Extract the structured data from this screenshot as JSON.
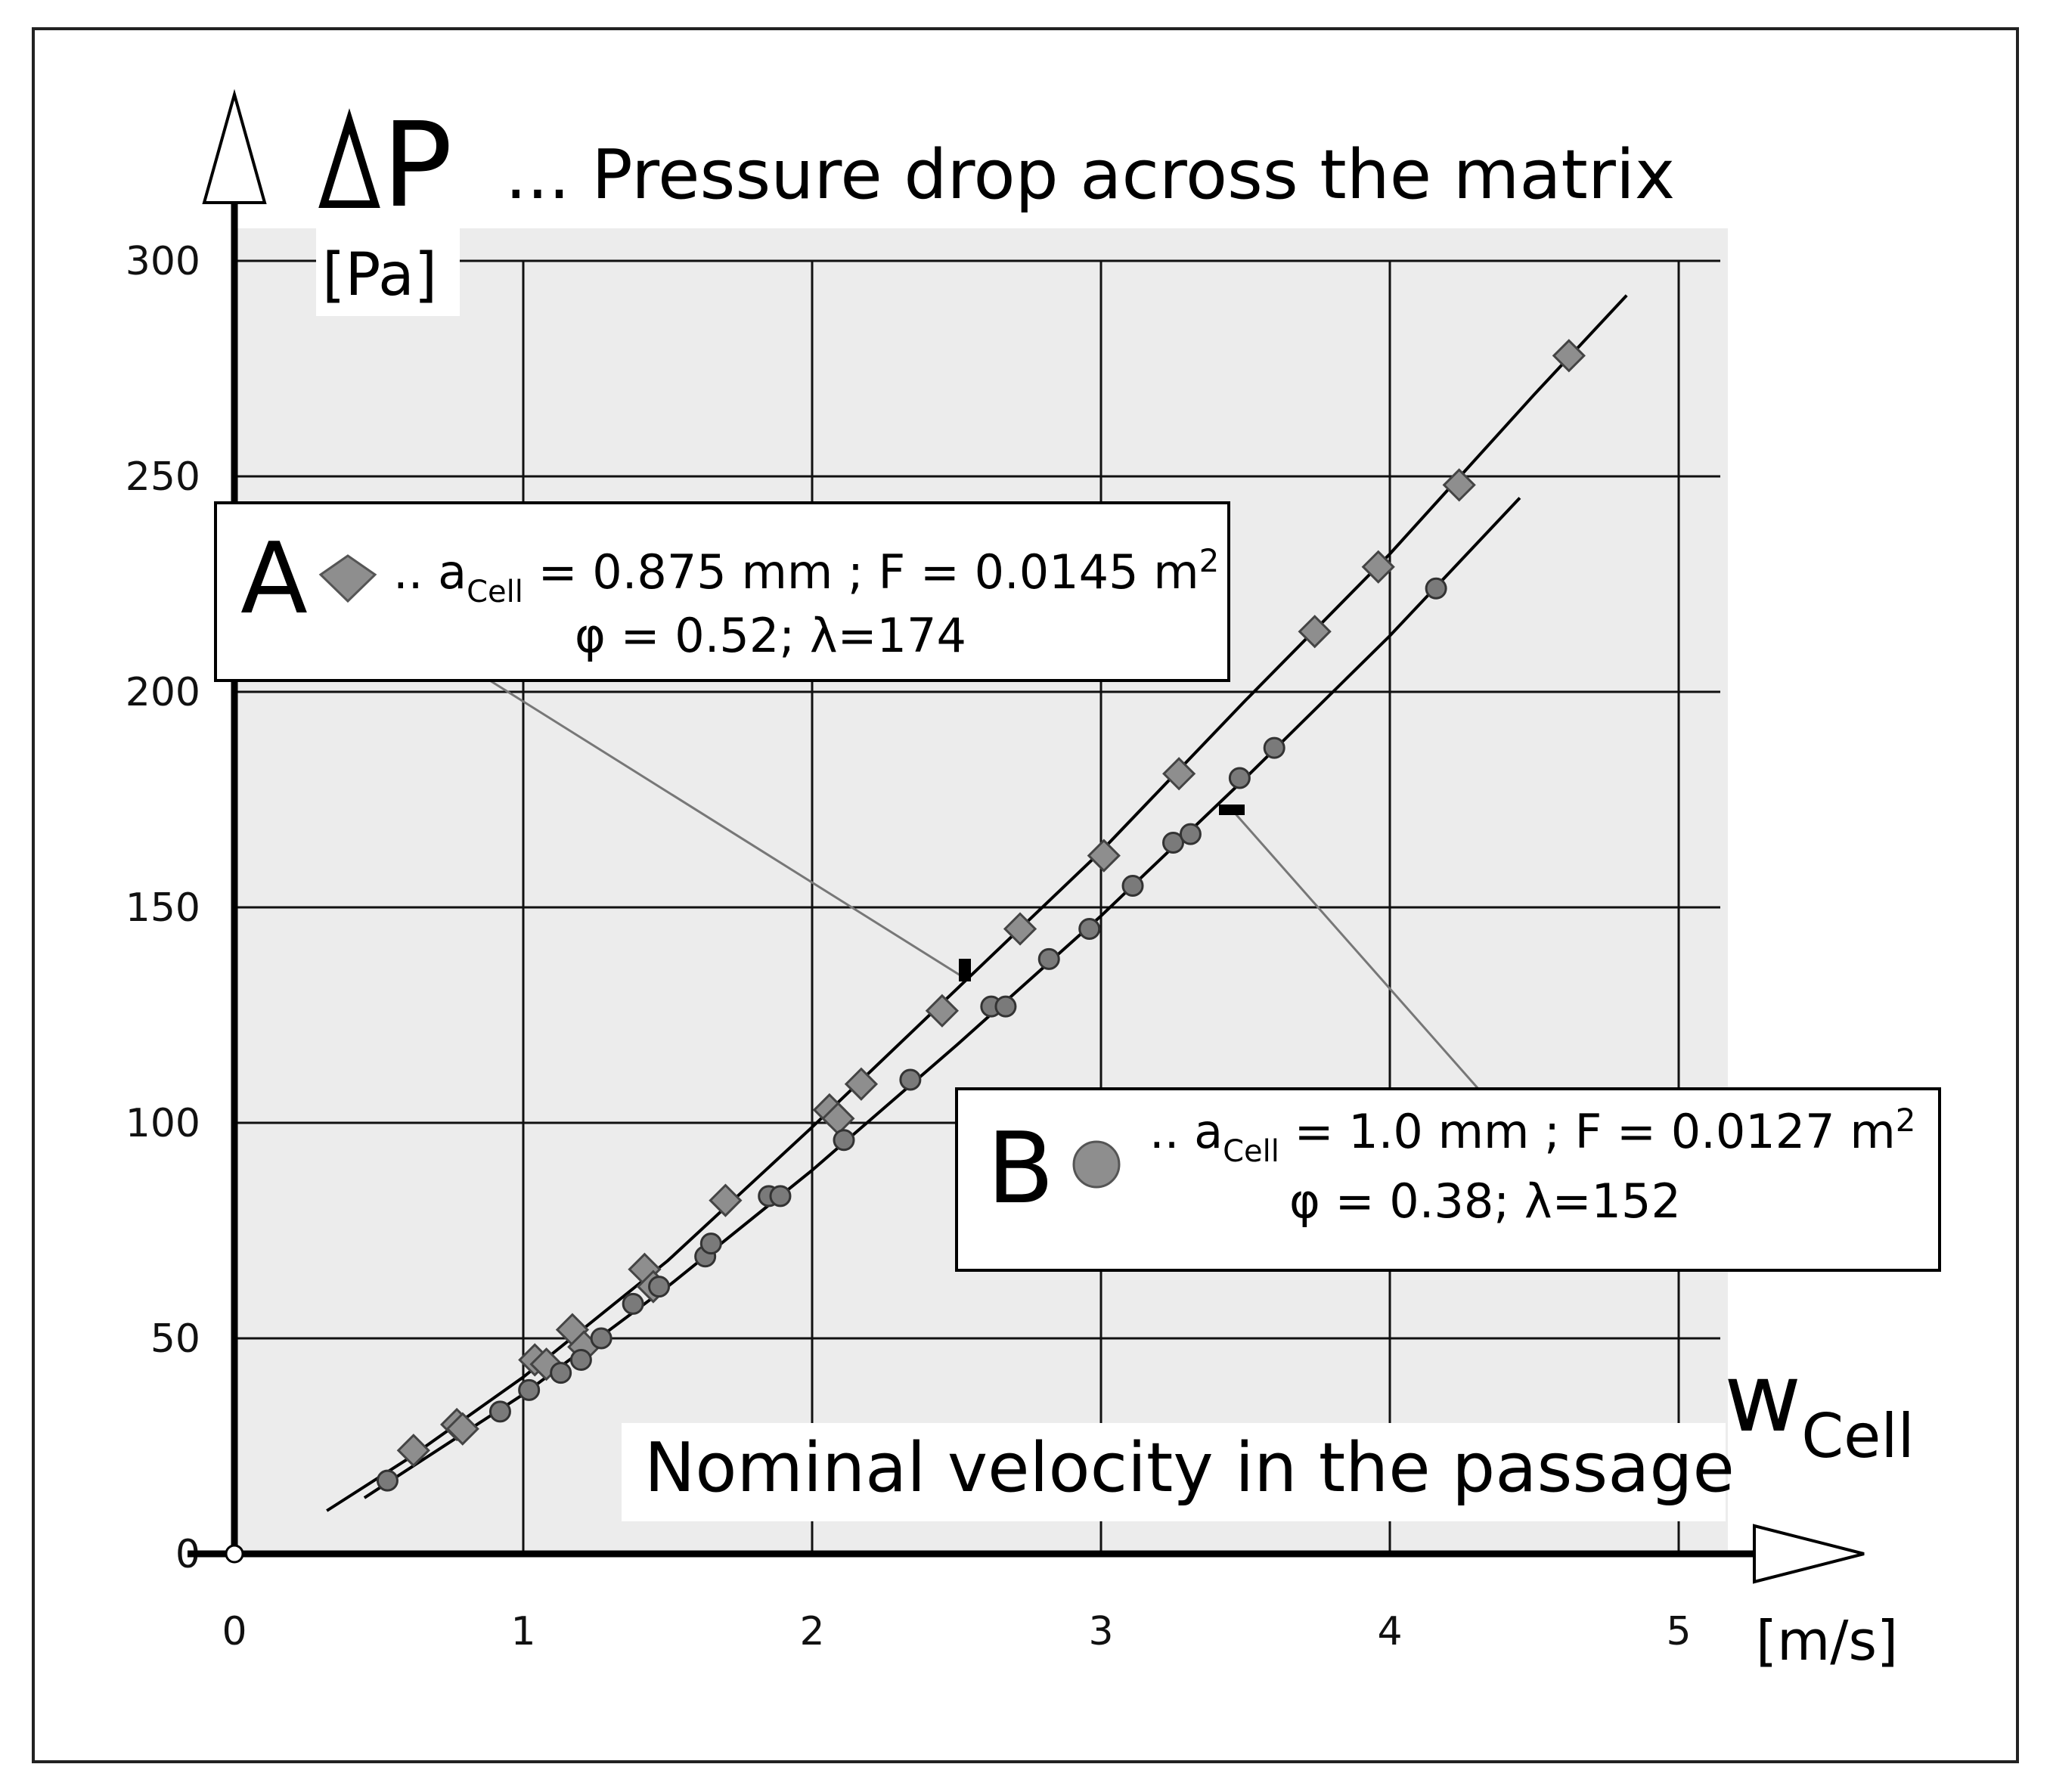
{
  "chart_data": {
    "type": "scatter",
    "title_symbol": "ΔP",
    "title": "... Pressure drop across the matrix",
    "ylabel_unit": "[Pa]",
    "xlabel": "Nominal velocity in the passage",
    "xlabel_symbol": "w",
    "xlabel_subscript": "Cell",
    "xlabel_unit": "[m/s]",
    "xlim": [
      0,
      5
    ],
    "ylim": [
      0,
      300
    ],
    "x_ticks": [
      0,
      1,
      2,
      3,
      4,
      5
    ],
    "y_ticks": [
      0,
      50,
      100,
      150,
      200,
      250,
      300
    ],
    "grid": true,
    "series": [
      {
        "name": "A",
        "marker": "diamond",
        "legend_line1_prefix": ".. a",
        "legend_line1_sub": "Cell",
        "legend_line1_suffix": " = 0.875 mm ;  F = 0.0145  m",
        "legend_line1_sup": "2",
        "legend_line2": "φ = 0.52;  λ=174",
        "points": [
          [
            0.62,
            24
          ],
          [
            0.77,
            30
          ],
          [
            0.79,
            29
          ],
          [
            1.04,
            45
          ],
          [
            1.08,
            44
          ],
          [
            1.17,
            52
          ],
          [
            1.21,
            48
          ],
          [
            1.42,
            66
          ],
          [
            1.45,
            62
          ],
          [
            1.7,
            82
          ],
          [
            2.06,
            103
          ],
          [
            2.09,
            101
          ],
          [
            2.17,
            109
          ],
          [
            2.45,
            126
          ],
          [
            2.72,
            145
          ],
          [
            3.01,
            162
          ],
          [
            3.27,
            181
          ],
          [
            3.74,
            214
          ],
          [
            3.96,
            229
          ],
          [
            4.24,
            248
          ],
          [
            4.62,
            278
          ]
        ],
        "fit_curve": [
          [
            0.32,
            10
          ],
          [
            0.6,
            22
          ],
          [
            1.0,
            41
          ],
          [
            1.5,
            68
          ],
          [
            2.0,
            99
          ],
          [
            2.5,
            131
          ],
          [
            3.0,
            163
          ],
          [
            3.5,
            198
          ],
          [
            4.0,
            232
          ],
          [
            4.5,
            269
          ],
          [
            4.82,
            292
          ]
        ]
      },
      {
        "name": "B",
        "marker": "circle",
        "legend_line1_prefix": ".. a",
        "legend_line1_sub": "Cell",
        "legend_line1_suffix": " = 1.0 mm ;  F = 0.0127  m",
        "legend_line1_sup": "2",
        "legend_line2": "φ = 0.38;  λ=152",
        "points": [
          [
            0.53,
            17
          ],
          [
            0.92,
            33
          ],
          [
            1.02,
            38
          ],
          [
            1.13,
            42
          ],
          [
            1.2,
            45
          ],
          [
            1.27,
            50
          ],
          [
            1.38,
            58
          ],
          [
            1.47,
            62
          ],
          [
            1.63,
            69
          ],
          [
            1.65,
            72
          ],
          [
            1.85,
            83
          ],
          [
            1.89,
            83
          ],
          [
            2.11,
            96
          ],
          [
            2.34,
            110
          ],
          [
            2.62,
            127
          ],
          [
            2.67,
            127
          ],
          [
            2.82,
            138
          ],
          [
            2.96,
            145
          ],
          [
            3.11,
            155
          ],
          [
            3.25,
            165
          ],
          [
            3.31,
            167
          ],
          [
            3.48,
            180
          ],
          [
            3.6,
            187
          ],
          [
            4.16,
            224
          ]
        ],
        "fit_curve": [
          [
            0.45,
            13
          ],
          [
            1.0,
            37
          ],
          [
            1.5,
            62
          ],
          [
            2.0,
            89
          ],
          [
            2.5,
            118
          ],
          [
            3.0,
            148
          ],
          [
            3.5,
            180
          ],
          [
            4.0,
            213
          ],
          [
            4.45,
            245
          ]
        ]
      }
    ],
    "annotations": [
      "A",
      "B"
    ]
  }
}
